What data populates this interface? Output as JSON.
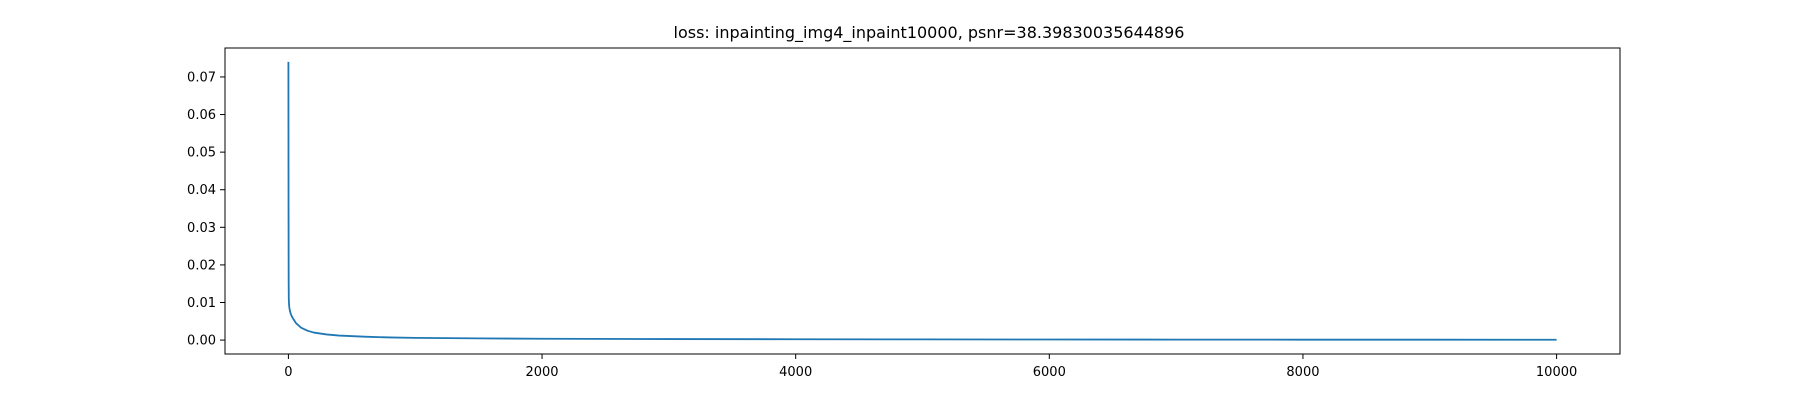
{
  "chart_data": {
    "type": "line",
    "title": "loss: inpainting_img4_inpaint10000, psnr=38.39830035644896",
    "xlabel": "",
    "ylabel": "",
    "xlim": [
      -500,
      10500
    ],
    "ylim": [
      -0.0037,
      0.0777
    ],
    "grid": false,
    "legend": "none",
    "x_ticks": [
      0,
      2000,
      4000,
      6000,
      8000,
      10000
    ],
    "x_tick_labels": [
      "0",
      "2000",
      "4000",
      "6000",
      "8000",
      "10000"
    ],
    "y_ticks": [
      0.0,
      0.01,
      0.02,
      0.03,
      0.04,
      0.05,
      0.06,
      0.07
    ],
    "y_tick_labels": [
      "0.00",
      "0.01",
      "0.02",
      "0.03",
      "0.04",
      "0.05",
      "0.06",
      "0.07"
    ],
    "series": [
      {
        "color": "#1f77b4",
        "x": [
          0,
          1,
          2,
          3,
          5,
          8,
          12,
          20,
          35,
          60,
          100,
          150,
          200,
          300,
          400,
          600,
          800,
          1000,
          1500,
          2000,
          3000,
          4000,
          5000,
          6000,
          7000,
          8000,
          9000,
          10000
        ],
        "y": [
          0.074,
          0.035,
          0.016,
          0.011,
          0.0095,
          0.0085,
          0.0078,
          0.0068,
          0.0058,
          0.0045,
          0.0033,
          0.0025,
          0.002,
          0.0015,
          0.0012,
          0.0009,
          0.0007,
          0.0006,
          0.00045,
          0.00035,
          0.00028,
          0.00022,
          0.00018,
          0.00015,
          0.00013,
          0.00011,
          0.0001,
          9e-05
        ]
      }
    ]
  }
}
